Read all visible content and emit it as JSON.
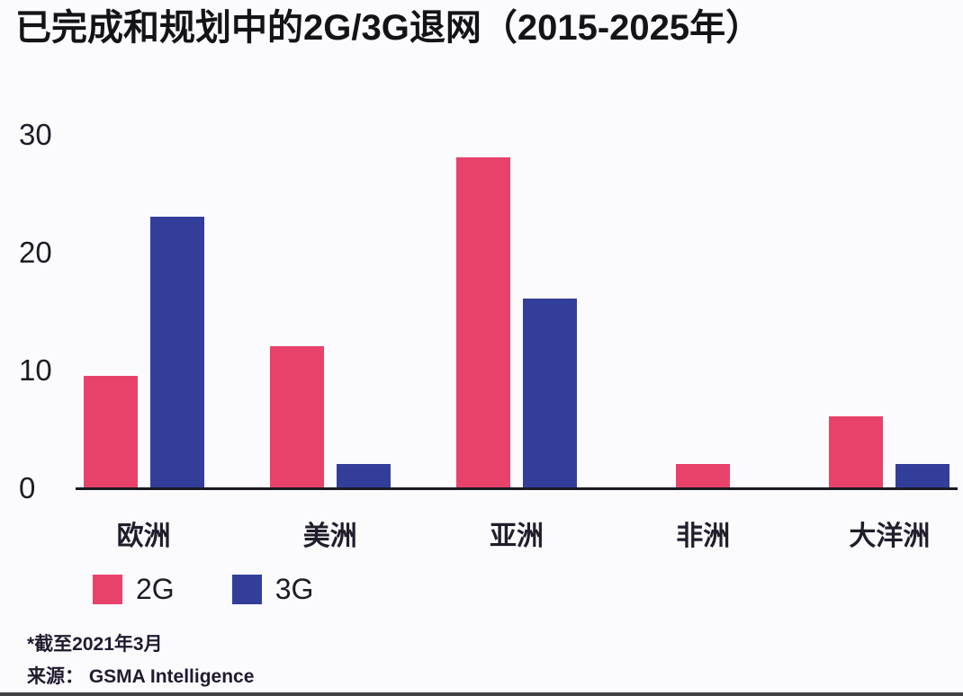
{
  "title": "已完成和规划中的2G/3G退网（2015-2025年）",
  "chart_data": {
    "type": "bar",
    "categories": [
      "欧洲",
      "美洲",
      "亚洲",
      "非洲",
      "大洋洲"
    ],
    "series": [
      {
        "name": "2G",
        "color": "#E8426B",
        "values": [
          9.5,
          12,
          28,
          2,
          6
        ]
      },
      {
        "name": "3G",
        "color": "#333E9B",
        "values": [
          23,
          2,
          16,
          0,
          2
        ]
      }
    ],
    "ylim": [
      0,
      30
    ],
    "yticks": [
      0,
      10,
      20,
      30
    ],
    "grid": false,
    "legend_position": "bottom-left",
    "xlabel": "",
    "ylabel": ""
  },
  "footnotes": {
    "note": "*截至2021年3月",
    "source": "来源：  GSMA Intelligence"
  }
}
